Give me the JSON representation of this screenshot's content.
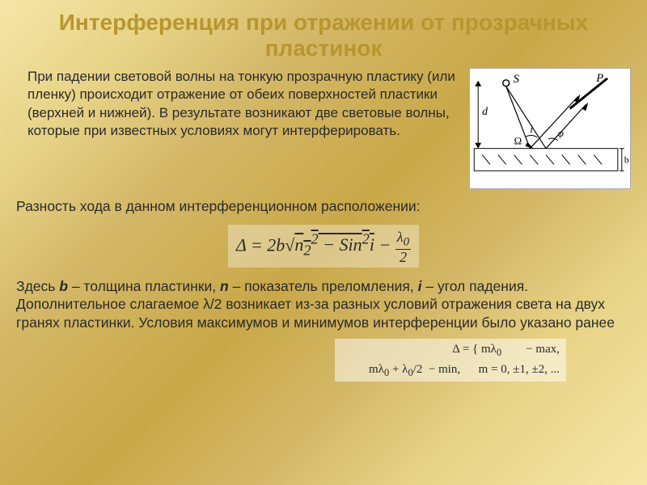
{
  "title": "Интерференция при отражении от прозрачных пластинок",
  "para1": "При падении световой волны на тонкую прозрачную пластику (или пленку) происходит отражение от обеих поверхностей пластики (верхней и нижней). В результате возникают две световые волны, которые при известных условиях могут интерферировать.",
  "para2": "Разность хода в данном интерференционном расположении:",
  "formula_main_html": "Δ = 2b√<span style='text-decoration:overline'>n<sub>2</sub><sup>2</sup> − Sin<sup>2</sup>i</span> − <span style='display:inline-block;vertical-align:middle;text-align:center;line-height:1'><span style='display:block;border-bottom:1px solid #2a2a2a;font-size:18px;padding:0 2px'>λ<sub>0</sub></span><span style='display:block;font-size:18px'>2</span></span>",
  "para3_html": "Здесь <b class='var'>b</b> – толщина пластинки, <b class='var'>n</b> – показатель преломления, <b class='var'>i</b> – угол падения. Дополнительное слагаемое λ/2 возникает из-за разных условий отражения света на двух гранях пластинки. Условия максимумов и минимумов интерференции было указано ранее",
  "formula_bottom_html": "Δ = { mλ<sub>0</sub> &nbsp;&nbsp;&nbsp;&nbsp;&nbsp;&nbsp; − max,<br>&nbsp;&nbsp;&nbsp;&nbsp;&nbsp;&nbsp;&nbsp;&nbsp; mλ<sub>0</sub> + λ<sub>0</sub>/2 &nbsp;− min, &nbsp;&nbsp;&nbsp;&nbsp; m = 0, ±1, ±2, ...",
  "diagram": {
    "labels": {
      "S": "S",
      "P": "P",
      "d": "d",
      "i": "i",
      "phi": "φ",
      "Omega": "Ω",
      "b": "b"
    },
    "colors": {
      "stroke": "#000000",
      "bg": "#ffffff"
    }
  },
  "styling": {
    "title_color": "#b8962e",
    "title_fontsize": 28,
    "body_fontsize": 17.5,
    "formula_fontsize": 22,
    "text_color": "#2a2a2a",
    "bg_gradient": [
      "#f5e6a8",
      "#e8d488",
      "#d4b868",
      "#c9a848"
    ],
    "font_family": "Arial"
  }
}
